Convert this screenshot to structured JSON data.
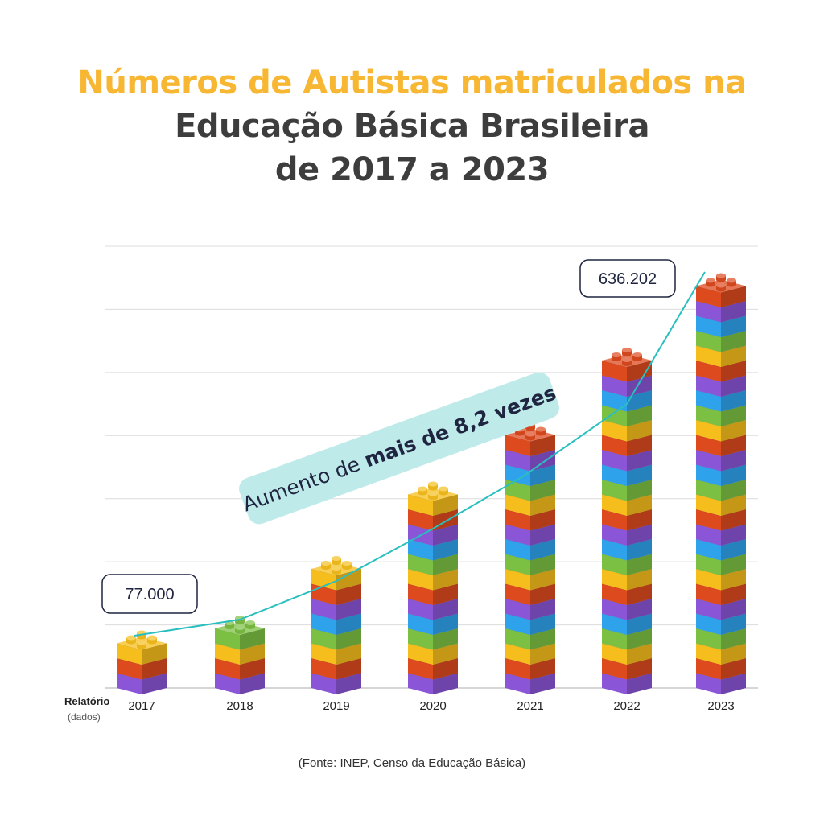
{
  "title": {
    "line1": "Números de Autistas matriculados na",
    "line2": "Educação Básica Brasileira",
    "line3": "de 2017 a 2023"
  },
  "chart_data": {
    "type": "bar",
    "categories": [
      "2017",
      "2018",
      "2019",
      "2020",
      "2021",
      "2022",
      "2023"
    ],
    "values": [
      77000,
      105000,
      178000,
      295000,
      405000,
      520000,
      636202
    ],
    "ylim": [
      0,
      700000
    ],
    "grid": true,
    "x_prefix_label": "Relatório",
    "x_prefix_sublabel": "(dados)",
    "annotations": {
      "first": "77.000",
      "last": "636.202",
      "trend_prefix": "Aumento de ",
      "trend_bold": "mais de 8,2 vezes"
    },
    "colors": {
      "purple": "#8a55d6",
      "blue": "#2ea3ec",
      "green": "#7cc043",
      "yellow": "#f5be1c",
      "red": "#dc4a1e",
      "line": "#2abfbf",
      "trend_bg": "#bfeaea"
    }
  },
  "source": "(Fonte: INEP, Censo da Educação Básica)"
}
